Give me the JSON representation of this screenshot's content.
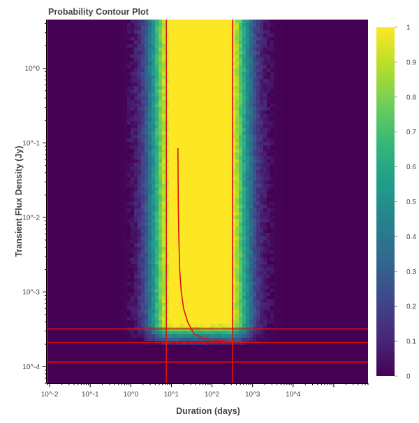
{
  "chart_data": {
    "type": "heatmap",
    "title": "Probability Contour Plot",
    "xlabel": "Duration (days)",
    "ylabel": "Transient Flux Density (Jy)",
    "x_scale": "log",
    "y_scale": "log",
    "xlim": [
      0.0085,
      700000
    ],
    "ylim": [
      6e-05,
      4.5
    ],
    "x_ticks": [
      {
        "value": 0.01,
        "label": "10^-2"
      },
      {
        "value": 0.1,
        "label": "10^-1"
      },
      {
        "value": 1,
        "label": "10^0"
      },
      {
        "value": 10,
        "label": "10^1"
      },
      {
        "value": 100,
        "label": "10^2"
      },
      {
        "value": 1000,
        "label": "10^3"
      },
      {
        "value": 10000,
        "label": "10^4"
      }
    ],
    "y_ticks": [
      {
        "value": 0.0001,
        "label": "10^-4"
      },
      {
        "value": 0.001,
        "label": "10^-3"
      },
      {
        "value": 0.01,
        "label": "10^-2"
      },
      {
        "value": 0.1,
        "label": "10^-1"
      },
      {
        "value": 1,
        "label": "10^0"
      }
    ],
    "colorbar": {
      "min": 0,
      "max": 1,
      "ticks": [
        {
          "value": 1,
          "label": "1"
        },
        {
          "value": 0.9,
          "label": "0.9"
        },
        {
          "value": 0.8,
          "label": "0.8"
        },
        {
          "value": 0.7,
          "label": "0.7"
        },
        {
          "value": 0.6,
          "label": "0.6"
        },
        {
          "value": 0.5,
          "label": "0.5"
        },
        {
          "value": 0.4,
          "label": "0.4"
        },
        {
          "value": 0.3,
          "label": "0.3"
        },
        {
          "value": 0.2,
          "label": "0.2"
        },
        {
          "value": 0.1,
          "label": "0.1"
        },
        {
          "value": 0,
          "label": "0"
        }
      ],
      "colors": [
        "#440154",
        "#482878",
        "#3e4989",
        "#31688e",
        "#26828e",
        "#1f9e89",
        "#35b779",
        "#6ece58",
        "#b5de2b",
        "#fde725"
      ]
    },
    "probability_regions": {
      "full_probability_x_range": [
        10,
        250
      ],
      "transition_width_decades": 0.55,
      "flux_floor": 0.00019
    },
    "vertical_lines_x": [
      0.0087,
      7.5,
      320
    ],
    "horizontal_lines_y": [
      0.00032,
      0.00021,
      0.000115
    ],
    "curve": {
      "points": [
        [
          14.5,
          0.085
        ],
        [
          14.6,
          0.04
        ],
        [
          14.8,
          0.015
        ],
        [
          15.2,
          0.006
        ],
        [
          16,
          0.002
        ],
        [
          17.5,
          0.001
        ],
        [
          20,
          0.0006
        ],
        [
          25,
          0.0004
        ],
        [
          35,
          0.00028
        ],
        [
          60,
          0.00024
        ],
        [
          150,
          0.000222
        ],
        [
          500,
          0.000214
        ],
        [
          2000,
          0.00021
        ],
        [
          10000,
          0.00021
        ],
        [
          700000,
          0.00021
        ]
      ]
    },
    "line_color": "#dd1111"
  }
}
